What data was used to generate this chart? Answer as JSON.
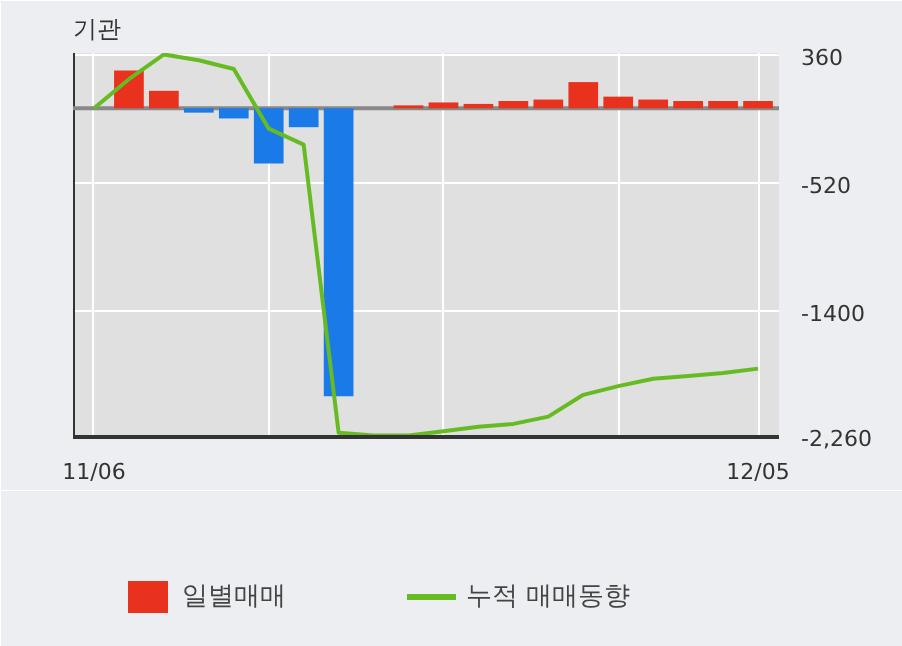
{
  "chart_data": {
    "type": "bar",
    "title": "기관",
    "categories": [
      "11/06",
      null,
      null,
      null,
      null,
      null,
      null,
      null,
      null,
      null,
      null,
      null,
      null,
      null,
      null,
      null,
      null,
      null,
      null,
      "12/05"
    ],
    "series": [
      {
        "name": "일별매매",
        "values": [
          null,
          260,
          120,
          -30,
          -70,
          -380,
          -130,
          -1980,
          null,
          20,
          40,
          30,
          50,
          60,
          180,
          80,
          60,
          50,
          50,
          50
        ],
        "colors": [
          "#1a7ae8",
          "#e8321e",
          "#e8321e",
          "#1a7ae8",
          "#1a7ae8",
          "#1a7ae8",
          "#1a7ae8",
          "#1a7ae8",
          "#1a7ae8",
          "#e8321e",
          "#e8321e",
          "#e8321e",
          "#e8321e",
          "#e8321e",
          "#e8321e",
          "#e8321e",
          "#e8321e",
          "#e8321e",
          "#e8321e",
          "#e8321e"
        ]
      },
      {
        "name": "누적 매매동향",
        "type": "line",
        "color": "#66bb22",
        "values": [
          0,
          200,
          370,
          330,
          270,
          -140,
          -250,
          -2230,
          -2250,
          -2250,
          -2220,
          -2190,
          -2170,
          -2120,
          -1970,
          -1910,
          -1860,
          -1840,
          -1820,
          -1790
        ]
      }
    ],
    "ylim": [
      -2260,
      380
    ],
    "yticks": [
      360,
      -520,
      -1400,
      {
        "value": -2260,
        "label": "-2,260"
      }
    ],
    "grid": true,
    "legend": "bottom"
  }
}
